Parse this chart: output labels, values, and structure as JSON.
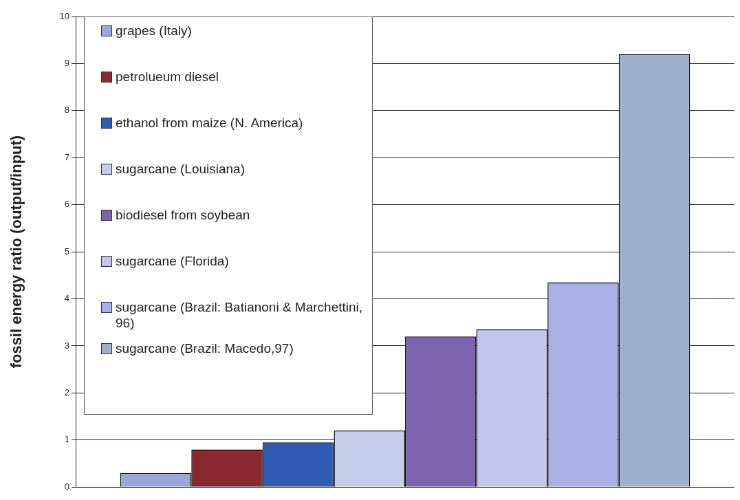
{
  "chart_data": {
    "type": "bar",
    "ylabel": "fossil energy ratio (output/input)",
    "categories": [
      null
    ],
    "series": [
      {
        "name": "grapes (Italy)",
        "color": "#9aa6d8",
        "values": [
          0.3
        ]
      },
      {
        "name": "petrolueum diesel",
        "color": "#8b2a2e",
        "values": [
          0.8
        ]
      },
      {
        "name": "ethanol from maize (N. America)",
        "color": "#2f5bb0",
        "values": [
          0.95
        ]
      },
      {
        "name": "sugarcane (Louisiana)",
        "color": "#c8cceb",
        "values": [
          1.2
        ]
      },
      {
        "name": "biodiesel from soybean",
        "color": "#7a64b0",
        "values": [
          3.2
        ]
      },
      {
        "name": "sugarcane (Florida)",
        "color": "#c4c6ee",
        "values": [
          3.35
        ]
      },
      {
        "name": "sugarcane (Brazil: Batianoni & Marchettini, 96)",
        "color": "#a9b0e6",
        "values": [
          4.35
        ]
      },
      {
        "name": "sugarcane (Brazil: Macedo,97)",
        "color": "#9fb0cc",
        "values": [
          9.2
        ]
      }
    ],
    "ylim": [
      0,
      10
    ],
    "yticks": [
      0,
      1,
      2,
      3,
      4,
      5,
      6,
      7,
      8,
      9,
      10
    ],
    "grid": true,
    "legend": "top left"
  }
}
